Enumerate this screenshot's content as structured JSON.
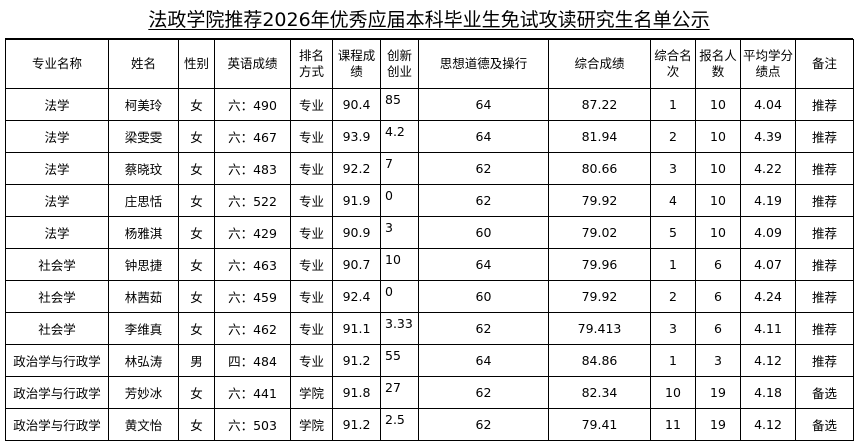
{
  "title": "法政学院推荐2026年优秀应届本科毕业生免试攻读研究生名单公示",
  "table": {
    "header": [
      "专业名称",
      "姓名",
      "性别",
      "英语成绩",
      "排名方式",
      "课程成绩",
      "创新创业",
      "思想道德及操行",
      "综合成绩",
      "综合名次",
      "报名人数",
      "平均学分绩点",
      "备注"
    ],
    "rows": [
      [
        "法学",
        "柯美玲",
        "女",
        "六：490",
        "专业",
        "90.4",
        "85",
        "64",
        "87.22",
        "1",
        "10",
        "4.04",
        "推荐"
      ],
      [
        "法学",
        "梁雯雯",
        "女",
        "六：467",
        "专业",
        "93.9",
        "4.2",
        "64",
        "81.94",
        "2",
        "10",
        "4.39",
        "推荐"
      ],
      [
        "法学",
        "蔡晓玟",
        "女",
        "六：483",
        "专业",
        "92.2",
        "7",
        "62",
        "80.66",
        "3",
        "10",
        "4.22",
        "推荐"
      ],
      [
        "法学",
        "庄思恬",
        "女",
        "六：522",
        "专业",
        "91.9",
        "0",
        "62",
        "79.92",
        "4",
        "10",
        "4.19",
        "推荐"
      ],
      [
        "法学",
        "杨雅淇",
        "女",
        "六：429",
        "专业",
        "90.9",
        "3",
        "60",
        "79.02",
        "5",
        "10",
        "4.09",
        "推荐"
      ],
      [
        "社会学",
        "钟思捷",
        "女",
        "六：463",
        "专业",
        "90.7",
        "10",
        "64",
        "79.96",
        "1",
        "6",
        "4.07",
        "推荐"
      ],
      [
        "社会学",
        "林茜茹",
        "女",
        "六：459",
        "专业",
        "92.4",
        "0",
        "60",
        "79.92",
        "2",
        "6",
        "4.24",
        "推荐"
      ],
      [
        "社会学",
        "李维真",
        "女",
        "六：462",
        "专业",
        "91.1",
        "3.33",
        "62",
        "79.413",
        "3",
        "6",
        "4.11",
        "推荐"
      ],
      [
        "政治学与行政学",
        "林弘涛",
        "男",
        "四：484",
        "专业",
        "91.2",
        "55",
        "64",
        "84.86",
        "1",
        "3",
        "4.12",
        "推荐"
      ],
      [
        "政治学与行政学",
        "芳妙冰",
        "女",
        "六：441",
        "学院",
        "91.8",
        "27",
        "62",
        "82.34",
        "10",
        "19",
        "4.18",
        "备选"
      ],
      [
        "政治学与行政学",
        "黄文怡",
        "女",
        "六：503",
        "学院",
        "91.2",
        "2.5",
        "62",
        "79.41",
        "11",
        "19",
        "4.12",
        "备选"
      ]
    ]
  }
}
